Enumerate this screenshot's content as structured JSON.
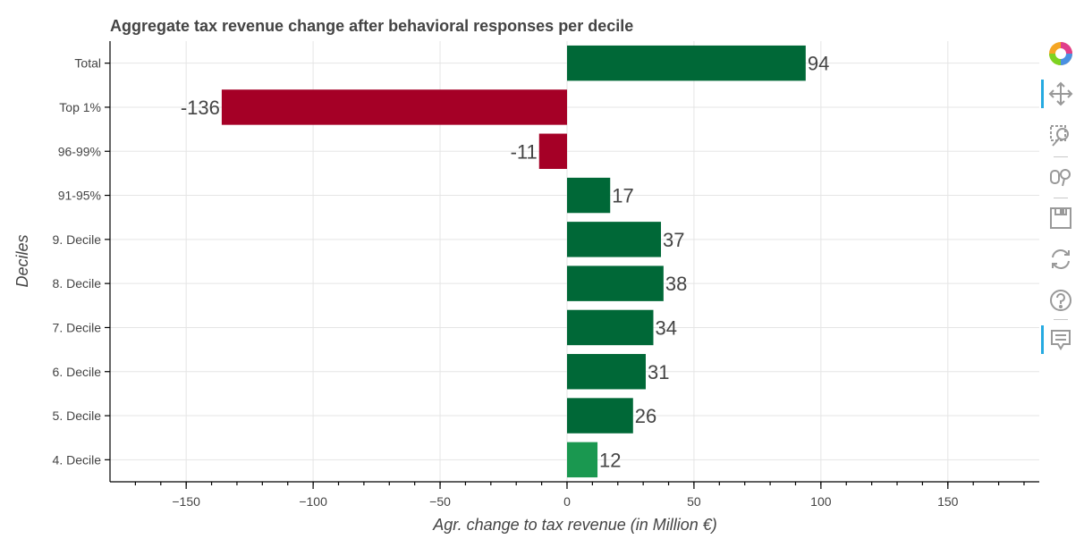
{
  "chart_data": {
    "type": "bar",
    "orientation": "horizontal",
    "title": "Aggregate tax revenue change after behavioral responses per decile",
    "xlabel": "Agr. change to tax revenue (in Million €)",
    "ylabel": "Deciles",
    "categories": [
      "Total",
      "Top 1%",
      "96-99%",
      "91-95%",
      "9. Decile",
      "8. Decile",
      "7. Decile",
      "6. Decile",
      "5. Decile",
      "4. Decile"
    ],
    "values": [
      94,
      -136,
      -11,
      17,
      37,
      38,
      34,
      31,
      26,
      12
    ],
    "data_labels": [
      "94",
      "-136",
      "-11",
      "17",
      "37",
      "38",
      "34",
      "31",
      "26",
      "12"
    ],
    "bar_colors": [
      "#006837",
      "#a50026",
      "#a50026",
      "#006837",
      "#006837",
      "#006837",
      "#006837",
      "#006837",
      "#006837",
      "#1a9850"
    ],
    "xlim": [
      -180,
      186
    ],
    "xticks": [
      -150,
      -100,
      -50,
      0,
      50,
      100,
      150
    ],
    "xtick_labels": [
      "−150",
      "−100",
      "−50",
      "0",
      "50",
      "100",
      "150"
    ],
    "grid": true,
    "legend": "none"
  },
  "toolbar": {
    "tools": [
      {
        "name": "bokeh-logo-icon",
        "active": false
      },
      {
        "name": "pan-icon",
        "active": true
      },
      {
        "name": "box-zoom-icon",
        "active": false
      },
      {
        "name": "wheel-zoom-icon",
        "active": false
      },
      {
        "name": "save-icon",
        "active": false
      },
      {
        "name": "reset-icon",
        "active": false
      },
      {
        "name": "help-icon",
        "active": false
      },
      {
        "name": "hover-icon",
        "active": true
      }
    ]
  }
}
